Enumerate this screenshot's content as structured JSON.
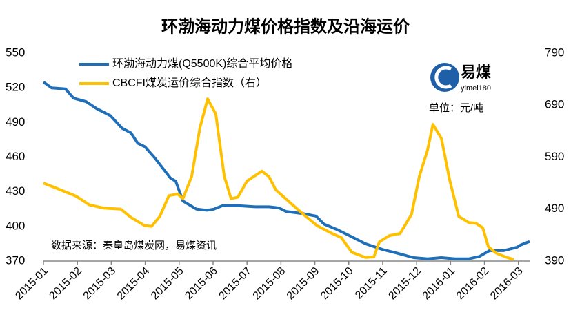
{
  "chart_data": {
    "type": "line",
    "title": "环渤海动力煤价格指数及沿海运价",
    "unit_note": "单位：元/吨",
    "source_note": "数据来源：秦皇岛煤炭网，易煤资讯",
    "logo": {
      "name": "易煤",
      "subname": "yimei180"
    },
    "xlim": [
      0,
      14.33
    ],
    "xticks": [
      {
        "value": 0,
        "label": "2015-01"
      },
      {
        "value": 1,
        "label": "2015-02"
      },
      {
        "value": 2,
        "label": "2015-03"
      },
      {
        "value": 3,
        "label": "2015-04"
      },
      {
        "value": 4,
        "label": "2015-05"
      },
      {
        "value": 5,
        "label": "2015-06"
      },
      {
        "value": 6,
        "label": "2015-07"
      },
      {
        "value": 7,
        "label": "2015-08"
      },
      {
        "value": 8,
        "label": "2015-09"
      },
      {
        "value": 9,
        "label": "2015-10"
      },
      {
        "value": 10,
        "label": "2015-11"
      },
      {
        "value": 11,
        "label": "2015-12"
      },
      {
        "value": 12,
        "label": "2016-01"
      },
      {
        "value": 13,
        "label": "2016-02"
      },
      {
        "value": 14,
        "label": "2016-03"
      }
    ],
    "ylim": [
      370,
      550
    ],
    "yticks": [
      370,
      400,
      430,
      460,
      490,
      520,
      550
    ],
    "y2lim": [
      390,
      790
    ],
    "y2ticks": [
      390,
      490,
      590,
      690,
      790
    ],
    "series": [
      {
        "name": "环渤海动力煤(Q5500K)综合平均价格",
        "color": "#1f6fb8",
        "axis": "y",
        "x": [
          0,
          0.24,
          0.65,
          0.89,
          1.26,
          1.57,
          1.97,
          2.32,
          2.58,
          2.78,
          2.99,
          3.29,
          3.5,
          3.74,
          3.9,
          4.11,
          4.51,
          4.82,
          5.02,
          5.28,
          5.73,
          6.24,
          6.65,
          6.95,
          7.15,
          7.66,
          8.03,
          8.27,
          8.68,
          9.09,
          9.49,
          10.0,
          10.41,
          10.91,
          11.32,
          11.73,
          12.13,
          12.54,
          12.85,
          13.15,
          13.56,
          13.96,
          14.07,
          14.33
        ],
        "values": [
          525,
          520,
          519,
          511,
          508,
          502,
          496,
          485,
          481,
          472,
          469,
          459,
          451,
          442,
          439,
          422,
          415,
          414,
          415,
          418,
          418,
          417,
          417,
          416,
          413,
          411,
          409,
          402,
          397,
          391,
          385,
          380,
          377,
          373,
          372,
          373,
          372,
          372,
          374,
          379,
          379,
          382,
          384,
          387
        ]
      },
      {
        "name": "CBCFI煤炭运价综合指数（右）",
        "color": "#ffc000",
        "axis": "y2",
        "x": [
          0,
          0.35,
          0.96,
          1.36,
          1.77,
          2.28,
          2.58,
          2.99,
          3.19,
          3.43,
          3.7,
          3.96,
          4.11,
          4.37,
          4.61,
          4.84,
          5.08,
          5.33,
          5.53,
          5.73,
          6.0,
          6.44,
          6.65,
          6.85,
          7.26,
          7.66,
          8.07,
          8.48,
          8.78,
          9.09,
          9.49,
          9.74,
          9.9,
          10.2,
          10.51,
          10.85,
          11.08,
          11.32,
          11.48,
          11.73,
          11.97,
          12.24,
          12.54,
          12.74,
          12.95,
          13.11,
          13.35,
          13.66,
          13.86
        ],
        "values": [
          540,
          531,
          515,
          498,
          492,
          490,
          474,
          458,
          457,
          476,
          516,
          519,
          510,
          553,
          646,
          702,
          673,
          553,
          510,
          513,
          544,
          563,
          552,
          527,
          503,
          480,
          458,
          444,
          435,
          407,
          397,
          398,
          427,
          439,
          443,
          480,
          553,
          603,
          653,
          626,
          547,
          476,
          464,
          463,
          454,
          418,
          405,
          397,
          393
        ]
      }
    ]
  }
}
